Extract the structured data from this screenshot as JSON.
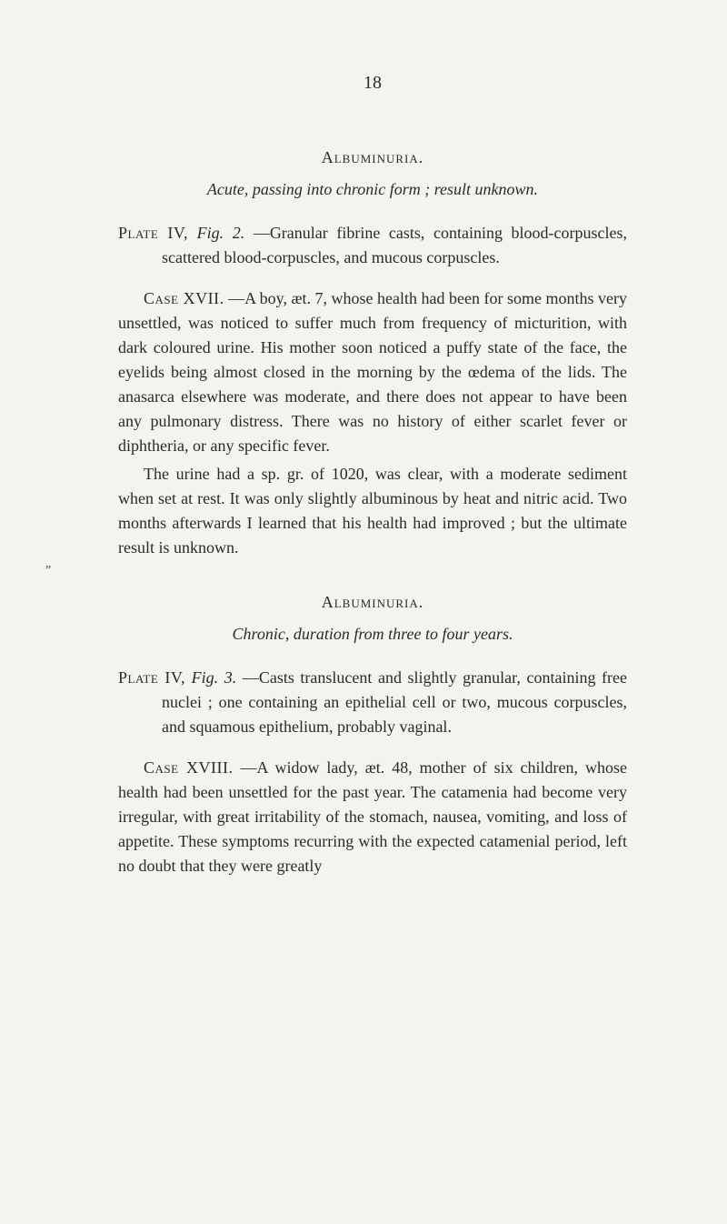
{
  "page_number": "18",
  "section1": {
    "heading": "Albuminuria.",
    "subtitle": "Acute, passing into chronic form ; result unknown.",
    "plate_label": "Plate IV,",
    "plate_fig": "Fig. 2.",
    "plate_text": "—Granular fibrine casts, containing blood-corpuscles, scattered blood-corpuscles, and mucous corpuscles.",
    "case_label": "Case XVII.",
    "case_text1": "—A boy, æt. 7, whose health had been for some months very unsettled, was noticed to suffer much from frequency of micturition, with dark coloured urine. His mother soon noticed a puffy state of the face, the eyelids being almost closed in the morning by the œdema of the lids. The anasarca elsewhere was moderate, and there does not appear to have been any pulmonary distress. There was no history of either scarlet fever or diphtheria, or any specific fever.",
    "case_text2": "The urine had a sp. gr. of 1020, was clear, with a moderate sediment when set at rest. It was only slightly albuminous by heat and nitric acid. Two months afterwards I learned that his health had improved ; but the ultimate result is unknown."
  },
  "section2": {
    "heading": "Albuminuria.",
    "subtitle": "Chronic, duration from three to four years.",
    "plate_label": "Plate IV,",
    "plate_fig": "Fig. 3.",
    "plate_text": "—Casts translucent and slightly granular, containing free nuclei ; one containing an epithelial cell or two, mucous corpuscles, and squamous epithelium, probably vaginal.",
    "case_label": "Case XVIII.",
    "case_text1": "—A widow lady, æt. 48, mother of six children, whose health had been unsettled for the past year. The catamenia had become very irregular, with great irritability of the stomach, nausea, vomiting, and loss of appetite. These symptoms recurring with the expected catamenial period, left no doubt that they were greatly"
  },
  "colors": {
    "background": "#f5f3ee",
    "text": "#2a2a2a"
  },
  "typography": {
    "body_fontsize": 18,
    "heading_fontsize": 18,
    "line_height": 1.5
  }
}
